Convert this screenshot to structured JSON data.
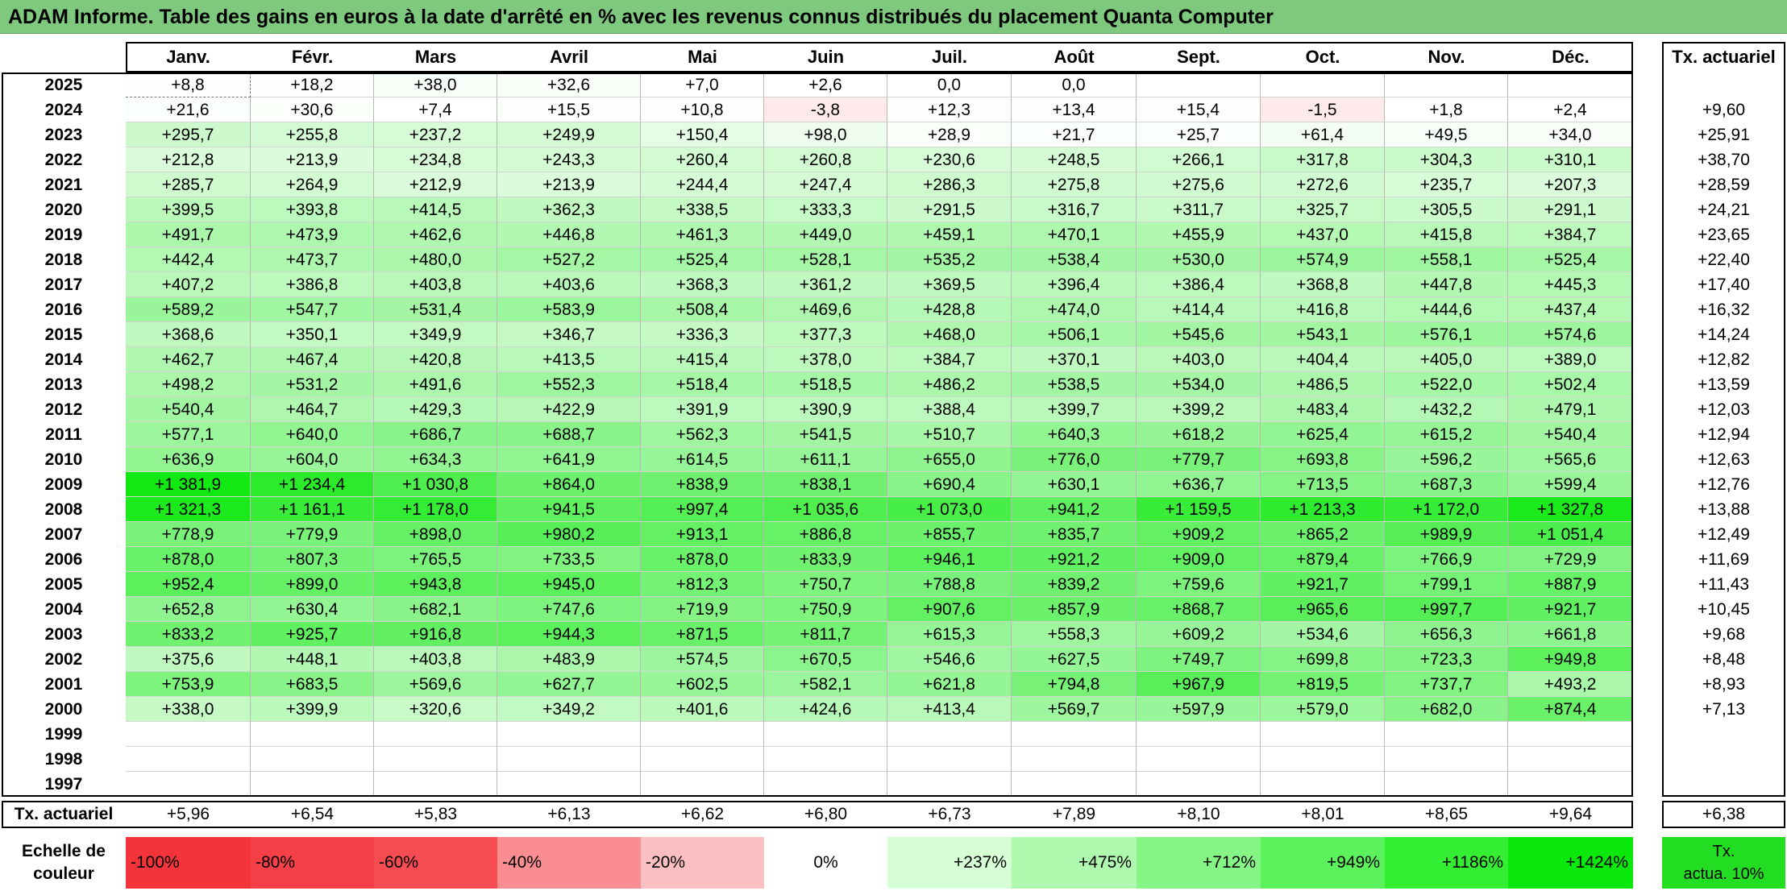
{
  "title": "ADAM Informe. Table des gains en euros à la date d'arrêté en % avec les revenus connus distribués du placement Quanta Computer",
  "months": [
    "Janv.",
    "Févr.",
    "Mars",
    "Avril",
    "Mai",
    "Juin",
    "Juil.",
    "Août",
    "Sept.",
    "Oct.",
    "Nov.",
    "Déc."
  ],
  "tx_header": "Tx. actuariel",
  "rows": [
    {
      "year": "2025",
      "values": [
        "+8,8",
        "+18,2",
        "+38,0",
        "+32,6",
        "+7,0",
        "+2,6",
        "0,0",
        "0,0",
        "",
        "",
        "",
        ""
      ],
      "tx": ""
    },
    {
      "year": "2024",
      "values": [
        "+21,6",
        "+30,6",
        "+7,4",
        "+15,5",
        "+10,8",
        "-3,8",
        "+12,3",
        "+13,4",
        "+15,4",
        "-1,5",
        "+1,8",
        "+2,4"
      ],
      "tx": "+9,60"
    },
    {
      "year": "2023",
      "values": [
        "+295,7",
        "+255,8",
        "+237,2",
        "+249,9",
        "+150,4",
        "+98,0",
        "+28,9",
        "+21,7",
        "+25,7",
        "+61,4",
        "+49,5",
        "+34,0"
      ],
      "tx": "+25,91"
    },
    {
      "year": "2022",
      "values": [
        "+212,8",
        "+213,9",
        "+234,8",
        "+243,3",
        "+260,4",
        "+260,8",
        "+230,6",
        "+248,5",
        "+266,1",
        "+317,8",
        "+304,3",
        "+310,1"
      ],
      "tx": "+38,70"
    },
    {
      "year": "2021",
      "values": [
        "+285,7",
        "+264,9",
        "+212,9",
        "+213,9",
        "+244,4",
        "+247,4",
        "+286,3",
        "+275,8",
        "+275,6",
        "+272,6",
        "+235,7",
        "+207,3"
      ],
      "tx": "+28,59"
    },
    {
      "year": "2020",
      "values": [
        "+399,5",
        "+393,8",
        "+414,5",
        "+362,3",
        "+338,5",
        "+333,3",
        "+291,5",
        "+316,7",
        "+311,7",
        "+325,7",
        "+305,5",
        "+291,1"
      ],
      "tx": "+24,21"
    },
    {
      "year": "2019",
      "values": [
        "+491,7",
        "+473,9",
        "+462,6",
        "+446,8",
        "+461,3",
        "+449,0",
        "+459,1",
        "+470,1",
        "+455,9",
        "+437,0",
        "+415,8",
        "+384,7"
      ],
      "tx": "+23,65"
    },
    {
      "year": "2018",
      "values": [
        "+442,4",
        "+473,7",
        "+480,0",
        "+527,2",
        "+525,4",
        "+528,1",
        "+535,2",
        "+538,4",
        "+530,0",
        "+574,9",
        "+558,1",
        "+525,4"
      ],
      "tx": "+22,40"
    },
    {
      "year": "2017",
      "values": [
        "+407,2",
        "+386,8",
        "+403,8",
        "+403,6",
        "+368,3",
        "+361,2",
        "+369,5",
        "+396,4",
        "+386,4",
        "+368,8",
        "+447,8",
        "+445,3"
      ],
      "tx": "+17,40"
    },
    {
      "year": "2016",
      "values": [
        "+589,2",
        "+547,7",
        "+531,4",
        "+583,9",
        "+508,4",
        "+469,6",
        "+428,8",
        "+474,0",
        "+414,4",
        "+416,8",
        "+444,6",
        "+437,4"
      ],
      "tx": "+16,32"
    },
    {
      "year": "2015",
      "values": [
        "+368,6",
        "+350,1",
        "+349,9",
        "+346,7",
        "+336,3",
        "+377,3",
        "+468,0",
        "+506,1",
        "+545,6",
        "+543,1",
        "+576,1",
        "+574,6"
      ],
      "tx": "+14,24"
    },
    {
      "year": "2014",
      "values": [
        "+462,7",
        "+467,4",
        "+420,8",
        "+413,5",
        "+415,4",
        "+378,0",
        "+384,7",
        "+370,1",
        "+403,0",
        "+404,4",
        "+405,0",
        "+389,0"
      ],
      "tx": "+12,82"
    },
    {
      "year": "2013",
      "values": [
        "+498,2",
        "+531,2",
        "+491,6",
        "+552,3",
        "+518,4",
        "+518,5",
        "+486,2",
        "+538,5",
        "+534,0",
        "+486,5",
        "+522,0",
        "+502,4"
      ],
      "tx": "+13,59"
    },
    {
      "year": "2012",
      "values": [
        "+540,4",
        "+464,7",
        "+429,3",
        "+422,9",
        "+391,9",
        "+390,9",
        "+388,4",
        "+399,7",
        "+399,2",
        "+483,4",
        "+432,2",
        "+479,1"
      ],
      "tx": "+12,03"
    },
    {
      "year": "2011",
      "values": [
        "+577,1",
        "+640,0",
        "+686,7",
        "+688,7",
        "+562,3",
        "+541,5",
        "+510,7",
        "+640,3",
        "+618,2",
        "+625,4",
        "+615,2",
        "+540,4"
      ],
      "tx": "+12,94"
    },
    {
      "year": "2010",
      "values": [
        "+636,9",
        "+604,0",
        "+634,3",
        "+641,9",
        "+614,5",
        "+611,1",
        "+655,0",
        "+776,0",
        "+779,7",
        "+693,8",
        "+596,2",
        "+565,6"
      ],
      "tx": "+12,63"
    },
    {
      "year": "2009",
      "values": [
        "+1 381,9",
        "+1 234,4",
        "+1 030,8",
        "+864,0",
        "+838,9",
        "+838,1",
        "+690,4",
        "+630,1",
        "+636,7",
        "+713,5",
        "+687,3",
        "+599,4"
      ],
      "tx": "+12,76"
    },
    {
      "year": "2008",
      "values": [
        "+1 321,3",
        "+1 161,1",
        "+1 178,0",
        "+941,5",
        "+997,4",
        "+1 035,6",
        "+1 073,0",
        "+941,2",
        "+1 159,5",
        "+1 213,3",
        "+1 172,0",
        "+1 327,8"
      ],
      "tx": "+13,88"
    },
    {
      "year": "2007",
      "values": [
        "+778,9",
        "+779,9",
        "+898,0",
        "+980,2",
        "+913,1",
        "+886,8",
        "+855,7",
        "+835,7",
        "+909,2",
        "+865,2",
        "+989,9",
        "+1 051,4"
      ],
      "tx": "+12,49"
    },
    {
      "year": "2006",
      "values": [
        "+878,0",
        "+807,3",
        "+765,5",
        "+733,5",
        "+878,0",
        "+833,9",
        "+946,1",
        "+921,2",
        "+909,0",
        "+879,4",
        "+766,9",
        "+729,9"
      ],
      "tx": "+11,69"
    },
    {
      "year": "2005",
      "values": [
        "+952,4",
        "+899,0",
        "+943,8",
        "+945,0",
        "+812,3",
        "+750,7",
        "+788,8",
        "+839,2",
        "+759,6",
        "+921,7",
        "+799,1",
        "+887,9"
      ],
      "tx": "+11,43"
    },
    {
      "year": "2004",
      "values": [
        "+652,8",
        "+630,4",
        "+682,1",
        "+747,6",
        "+719,9",
        "+750,9",
        "+907,6",
        "+857,9",
        "+868,7",
        "+965,6",
        "+997,7",
        "+921,7"
      ],
      "tx": "+10,45"
    },
    {
      "year": "2003",
      "values": [
        "+833,2",
        "+925,7",
        "+916,8",
        "+944,3",
        "+871,5",
        "+811,7",
        "+615,3",
        "+558,3",
        "+609,2",
        "+534,6",
        "+656,3",
        "+661,8"
      ],
      "tx": "+9,68"
    },
    {
      "year": "2002",
      "values": [
        "+375,6",
        "+448,1",
        "+403,8",
        "+483,9",
        "+574,5",
        "+670,5",
        "+546,6",
        "+627,5",
        "+749,7",
        "+699,8",
        "+723,3",
        "+949,8"
      ],
      "tx": "+8,48"
    },
    {
      "year": "2001",
      "values": [
        "+753,9",
        "+683,5",
        "+569,6",
        "+627,7",
        "+602,5",
        "+582,1",
        "+621,8",
        "+794,8",
        "+967,9",
        "+819,5",
        "+737,7",
        "+493,2"
      ],
      "tx": "+8,93"
    },
    {
      "year": "2000",
      "values": [
        "+338,0",
        "+399,9",
        "+320,6",
        "+349,2",
        "+401,6",
        "+424,6",
        "+413,4",
        "+569,7",
        "+597,9",
        "+579,0",
        "+682,0",
        "+874,4"
      ],
      "tx": "+7,13"
    },
    {
      "year": "1999",
      "values": [
        "",
        "",
        "",
        "",
        "",
        "",
        "",
        "",
        "",
        "",
        "",
        ""
      ],
      "tx": ""
    },
    {
      "year": "1998",
      "values": [
        "",
        "",
        "",
        "",
        "",
        "",
        "",
        "",
        "",
        "",
        "",
        ""
      ],
      "tx": ""
    },
    {
      "year": "1997",
      "values": [
        "",
        "",
        "",
        "",
        "",
        "",
        "",
        "",
        "",
        "",
        "",
        ""
      ],
      "tx": ""
    }
  ],
  "footer": {
    "label": "Tx. actuariel",
    "values": [
      "+5,96",
      "+6,54",
      "+5,83",
      "+6,13",
      "+6,62",
      "+6,80",
      "+6,73",
      "+7,89",
      "+8,10",
      "+8,01",
      "+8,65",
      "+9,64"
    ],
    "tx": "+6,38"
  },
  "legend": {
    "label_line1": "Echelle de",
    "label_line2": "couleur",
    "items": [
      {
        "text": "-100%",
        "color": "#f3343b",
        "align": "left"
      },
      {
        "text": "-80%",
        "color": "#f54047",
        "align": "left"
      },
      {
        "text": "-60%",
        "color": "#f74c52",
        "align": "left"
      },
      {
        "text": "-40%",
        "color": "#f98d91",
        "align": "left"
      },
      {
        "text": "-20%",
        "color": "#fcbfc1",
        "align": "left"
      },
      {
        "text": "0%",
        "color": "#ffffff",
        "align": "center"
      },
      {
        "text": "+237%",
        "color": "#d6ffd6",
        "align": "right"
      },
      {
        "text": "+475%",
        "color": "#aef9ae",
        "align": "right"
      },
      {
        "text": "+712%",
        "color": "#85f685",
        "align": "right"
      },
      {
        "text": "+949%",
        "color": "#5cf25c",
        "align": "right"
      },
      {
        "text": "+1186%",
        "color": "#33ee33",
        "align": "right"
      },
      {
        "text": "+1424%",
        "color": "#0be80b",
        "align": "right"
      }
    ],
    "tx_line1": "Tx.",
    "tx_line2": "actua. 10%",
    "tx_color": "#22dd22"
  },
  "colors": {
    "title_bg": "#7fc97f",
    "negative": "#fde9e9",
    "zero": "#ffffff"
  }
}
